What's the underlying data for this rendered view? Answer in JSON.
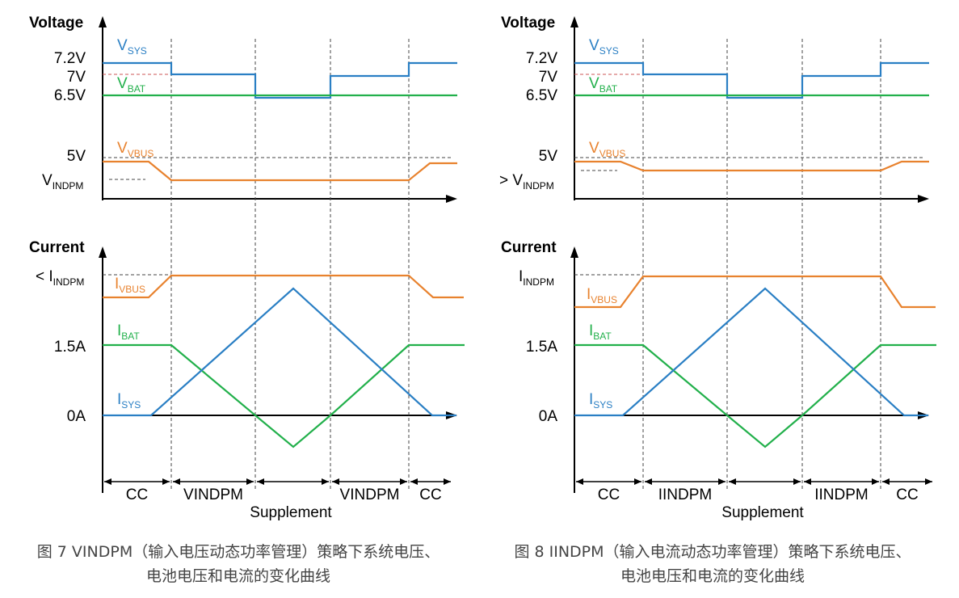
{
  "chart_data": [
    {
      "type": "line",
      "voltage_axis": {
        "title": "Voltage",
        "ticks": [
          "7.2V",
          "7V",
          "6.5V",
          "5V",
          "VINDPM"
        ]
      },
      "current_axis": {
        "title": "Current",
        "ticks": [
          "< IINDPM",
          "1.5A",
          "0A"
        ]
      },
      "series": [
        {
          "name": "VSYS",
          "label_main": "V",
          "label_sub": "SYS",
          "color": "#2a7fc4",
          "panel": "voltage"
        },
        {
          "name": "VBAT",
          "label_main": "V",
          "label_sub": "BAT",
          "color": "#22b04b",
          "panel": "voltage"
        },
        {
          "name": "VVBUS",
          "label_main": "V",
          "label_sub": "VBUS",
          "color": "#e8822e",
          "panel": "voltage"
        },
        {
          "name": "IVBUS",
          "label_main": "I",
          "label_sub": "VBUS",
          "color": "#e8822e",
          "panel": "current"
        },
        {
          "name": "IBAT",
          "label_main": "I",
          "label_sub": "BAT",
          "color": "#22b04b",
          "panel": "current"
        },
        {
          "name": "ISYS",
          "label_main": "I",
          "label_sub": "SYS",
          "color": "#2a7fc4",
          "panel": "current"
        }
      ],
      "phases": [
        "CC",
        "VINDPM",
        "",
        "VINDPM",
        "CC"
      ],
      "phase_caption": "Supplement"
    },
    {
      "type": "line",
      "voltage_axis": {
        "title": "Voltage",
        "ticks": [
          "7.2V",
          "7V",
          "6.5V",
          "5V",
          "> VINDPM"
        ]
      },
      "current_axis": {
        "title": "Current",
        "ticks": [
          "IINDPM",
          "1.5A",
          "0A"
        ]
      },
      "series": [
        {
          "name": "VSYS",
          "label_main": "V",
          "label_sub": "SYS",
          "color": "#2a7fc4",
          "panel": "voltage"
        },
        {
          "name": "VBAT",
          "label_main": "V",
          "label_sub": "BAT",
          "color": "#22b04b",
          "panel": "voltage"
        },
        {
          "name": "VVBUS",
          "label_main": "V",
          "label_sub": "VBUS",
          "color": "#e8822e",
          "panel": "voltage"
        },
        {
          "name": "IVBUS",
          "label_main": "I",
          "label_sub": "VBUS",
          "color": "#e8822e",
          "panel": "current"
        },
        {
          "name": "IBAT",
          "label_main": "I",
          "label_sub": "BAT",
          "color": "#22b04b",
          "panel": "current"
        },
        {
          "name": "ISYS",
          "label_main": "I",
          "label_sub": "SYS",
          "color": "#2a7fc4",
          "panel": "current"
        }
      ],
      "phases": [
        "CC",
        "IINDPM",
        "",
        "IINDPM",
        "CC"
      ],
      "phase_caption": "Supplement"
    }
  ],
  "captions": [
    {
      "line1": "图 7 VINDPM（输入电压动态功率管理）策略下系统电压、",
      "line2": "电池电压和电流的变化曲线"
    },
    {
      "line1": "图 8 IINDPM（输入电流动态功率管理）策略下系统电压、",
      "line2": "电池电压和电流的变化曲线"
    }
  ]
}
